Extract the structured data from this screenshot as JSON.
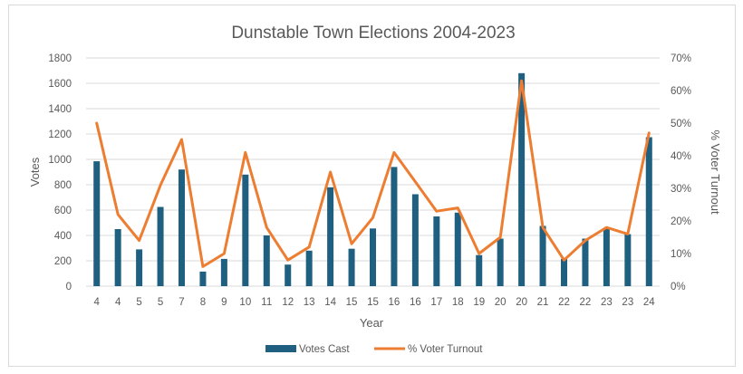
{
  "chart_data": {
    "type": "bar",
    "title": "Dunstable Town Elections 2004-2023",
    "xlabel": "Year",
    "ylabel": "Votes",
    "y2label": "% Voter Turnout",
    "ylim": [
      0,
      1800
    ],
    "y2lim": [
      0,
      0.7
    ],
    "yticks": [
      "0",
      "200",
      "400",
      "600",
      "800",
      "1000",
      "1200",
      "1400",
      "1600",
      "1800"
    ],
    "y2ticks": [
      "0%",
      "10%",
      "20%",
      "30%",
      "40%",
      "50%",
      "60%",
      "70%"
    ],
    "grid": "horizontal",
    "legend_position": "bottom",
    "categories": [
      "4",
      "4",
      "5",
      "5",
      "7",
      "8",
      "9",
      "10",
      "11",
      "12",
      "13",
      "14",
      "15",
      "15",
      "16",
      "16",
      "17",
      "18",
      "19",
      "20",
      "20",
      "21",
      "22",
      "22",
      "23",
      "23",
      "24"
    ],
    "series": [
      {
        "name": "Votes Cast",
        "type": "bar",
        "axis": "left",
        "color": "#1f5f7f",
        "values": [
          985,
          450,
          290,
          625,
          920,
          115,
          215,
          880,
          400,
          170,
          280,
          780,
          295,
          455,
          940,
          725,
          550,
          580,
          245,
          375,
          1680,
          475,
          215,
          375,
          455,
          410,
          1175
        ]
      },
      {
        "name": "% Voter Turnout",
        "type": "line",
        "axis": "right",
        "color": "#ed7d31",
        "values": [
          0.5,
          0.22,
          0.14,
          0.31,
          0.45,
          0.06,
          0.1,
          0.41,
          0.18,
          0.08,
          0.12,
          0.35,
          0.13,
          0.21,
          0.41,
          0.32,
          0.23,
          0.24,
          0.1,
          0.15,
          0.63,
          0.18,
          0.08,
          0.14,
          0.18,
          0.16,
          0.47
        ]
      }
    ]
  }
}
